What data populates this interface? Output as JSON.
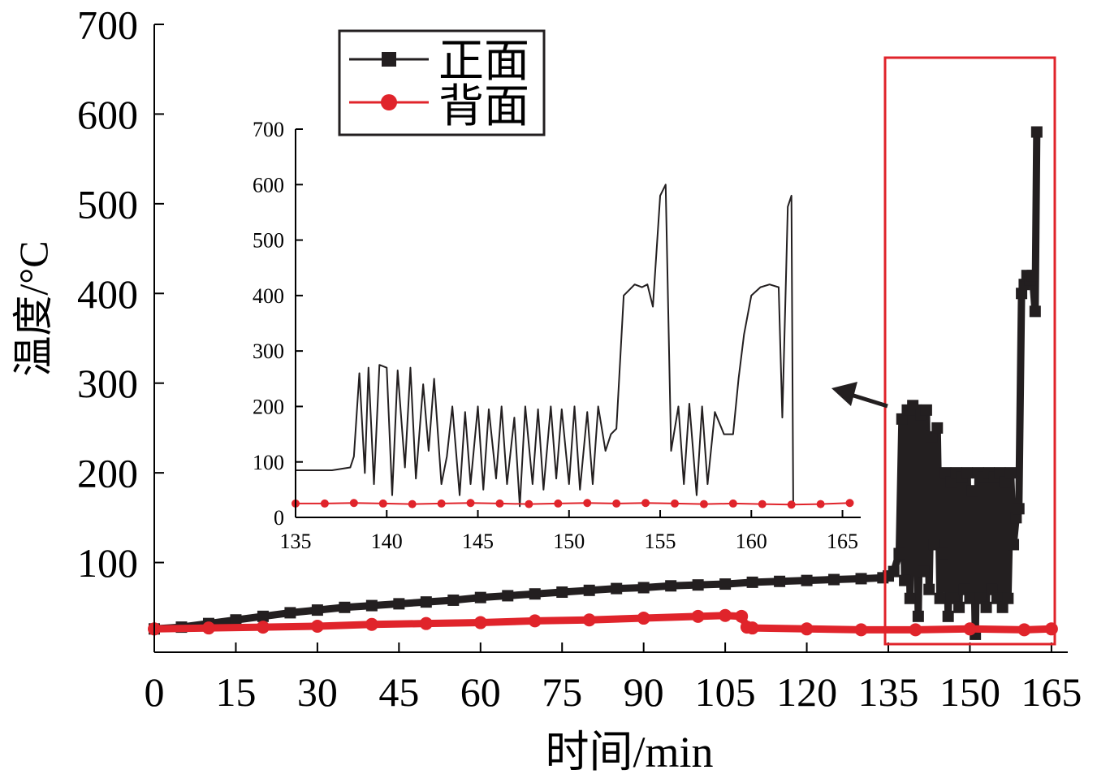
{
  "chart_data": [
    {
      "type": "line",
      "xlabel": "时间/min",
      "ylabel": "温度/°C",
      "xlim": [
        0,
        168
      ],
      "ylim": [
        0,
        700
      ],
      "xticks": [
        0,
        15,
        30,
        45,
        60,
        75,
        90,
        105,
        120,
        135,
        150,
        165
      ],
      "yticks": [
        100,
        200,
        300,
        400,
        500,
        600,
        700
      ],
      "legend": {
        "position": "top-left",
        "entries": [
          "正面",
          "背面"
        ]
      },
      "series": [
        {
          "name": "正面",
          "color": "#231f20",
          "marker": "square",
          "x": [
            0,
            5,
            10,
            15,
            20,
            25,
            30,
            35,
            40,
            45,
            50,
            55,
            60,
            65,
            70,
            75,
            80,
            85,
            90,
            95,
            100,
            105,
            110,
            115,
            120,
            125,
            130,
            134,
            135,
            136,
            137,
            137.5,
            138,
            138.5,
            139,
            139.5,
            140,
            140.5,
            141,
            141.5,
            142,
            142.5,
            143,
            143.5,
            144,
            144.5,
            145,
            145.5,
            146,
            146.5,
            147,
            147.5,
            148,
            148.5,
            149,
            149.5,
            150,
            150.5,
            151,
            151.5,
            152,
            152.5,
            153,
            153.5,
            154,
            154.5,
            155,
            155.5,
            156,
            156.5,
            157,
            157.5,
            158,
            158.5,
            159,
            159.5,
            160,
            160.5,
            161,
            161.5,
            162,
            162.3
          ],
          "values": [
            26,
            28,
            32,
            36,
            40,
            44,
            47,
            50,
            52,
            54,
            56,
            58,
            61,
            63,
            65,
            67,
            69,
            71,
            72,
            74,
            75,
            76,
            78,
            79,
            80,
            81,
            82,
            83,
            85,
            90,
            110,
            260,
            80,
            270,
            60,
            275,
            270,
            40,
            265,
            90,
            270,
            70,
            240,
            120,
            250,
            60,
            110,
            200,
            40,
            190,
            60,
            200,
            50,
            195,
            70,
            200,
            60,
            180,
            20,
            200,
            60,
            195,
            50,
            200,
            70,
            195,
            60,
            200,
            50,
            190,
            60,
            200,
            120,
            150,
            160,
            400,
            410,
            420,
            415,
            420,
            380,
            580
          ]
        },
        {
          "name": "背面",
          "color": "#e0242b",
          "marker": "circle",
          "x": [
            0,
            10,
            20,
            30,
            40,
            50,
            60,
            70,
            80,
            90,
            100,
            105,
            108,
            109,
            110,
            120,
            130,
            140,
            150,
            160,
            165
          ],
          "values": [
            26,
            27,
            28,
            29,
            31,
            32,
            33,
            35,
            36,
            38,
            40,
            41,
            40,
            28,
            27,
            26,
            25,
            25,
            26,
            25,
            26
          ]
        }
      ]
    },
    {
      "type": "line",
      "xlim": [
        135,
        166
      ],
      "ylim": [
        0,
        700
      ],
      "xticks": [
        135,
        140,
        145,
        150,
        155,
        160,
        165
      ],
      "yticks": [
        0,
        100,
        200,
        300,
        400,
        500,
        600,
        700
      ],
      "series": [
        {
          "name": "正面",
          "color": "#231f20",
          "x": [
            135,
            136,
            137,
            138,
            138.2,
            138.5,
            138.8,
            139,
            139.3,
            139.6,
            140,
            140.3,
            140.6,
            141,
            141.3,
            141.6,
            142,
            142.3,
            142.6,
            143,
            143.3,
            143.6,
            144,
            144.3,
            144.6,
            145,
            145.3,
            145.6,
            146,
            146.3,
            146.6,
            147,
            147.3,
            147.6,
            148,
            148.3,
            148.6,
            149,
            149.3,
            149.6,
            150,
            150.3,
            150.6,
            151,
            151.3,
            151.6,
            152,
            152.3,
            152.6,
            153,
            153.3,
            153.6,
            154,
            154.3,
            154.6,
            155,
            155.3,
            155.6,
            156,
            156.3,
            156.6,
            157,
            157.3,
            157.6,
            158,
            158.5,
            159,
            159.3,
            159.6,
            160,
            160.5,
            161,
            161.5,
            161.7,
            161.9,
            162,
            162.2,
            162.3
          ],
          "values": [
            85,
            85,
            85,
            90,
            110,
            260,
            80,
            270,
            60,
            275,
            270,
            40,
            265,
            90,
            270,
            70,
            240,
            120,
            250,
            60,
            110,
            200,
            40,
            190,
            60,
            200,
            50,
            195,
            70,
            200,
            60,
            180,
            20,
            200,
            60,
            195,
            50,
            200,
            70,
            195,
            60,
            200,
            50,
            190,
            60,
            200,
            120,
            150,
            160,
            400,
            410,
            420,
            415,
            420,
            380,
            580,
            600,
            120,
            200,
            60,
            205,
            40,
            200,
            60,
            190,
            150,
            150,
            250,
            330,
            400,
            415,
            420,
            415,
            180,
            430,
            560,
            580,
            20
          ]
        },
        {
          "name": "背面",
          "color": "#e0242b",
          "x": [
            135,
            136.6,
            138.2,
            139.8,
            141.4,
            143,
            144.6,
            146.2,
            147.8,
            149.4,
            151,
            152.6,
            154.2,
            155.8,
            157.4,
            159,
            160.6,
            162.2,
            163.8,
            165.4
          ],
          "values": [
            25,
            25,
            26,
            25,
            24,
            25,
            26,
            25,
            24,
            25,
            26,
            25,
            26,
            25,
            24,
            25,
            24,
            23,
            24,
            26
          ]
        }
      ]
    }
  ]
}
